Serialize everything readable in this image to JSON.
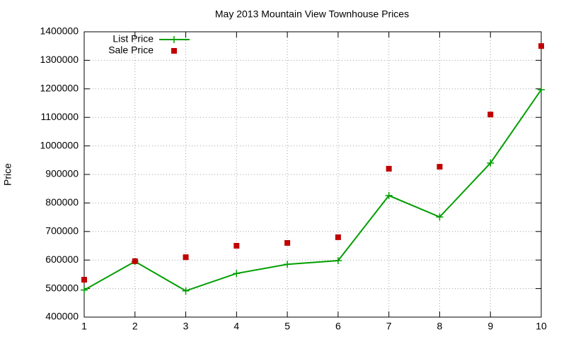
{
  "chart_data": {
    "type": "line",
    "title": "May 2013 Mountain View Townhouse Prices",
    "y_label": "Price",
    "x": [
      1,
      2,
      3,
      4,
      5,
      6,
      7,
      8,
      9,
      10
    ],
    "series": [
      {
        "name": "List Price",
        "color": "#009e00",
        "mode": "linespoints",
        "values": [
          495000,
          595000,
          492000,
          553000,
          585000,
          598000,
          826000,
          751000,
          940000,
          1197000
        ]
      },
      {
        "name": "Sale Price",
        "color": "#c00000",
        "mode": "points",
        "values": [
          531000,
          596000,
          610000,
          650000,
          660000,
          680000,
          920000,
          927000,
          1110000,
          1350000
        ]
      }
    ],
    "xlim": [
      1,
      10
    ],
    "xticks": [
      1,
      2,
      3,
      4,
      5,
      6,
      7,
      8,
      9,
      10
    ],
    "ylim": [
      400000,
      1400000
    ],
    "yticks": [
      400000,
      500000,
      600000,
      700000,
      800000,
      900000,
      1000000,
      1100000,
      1200000,
      1300000,
      1400000
    ],
    "grid": true,
    "legend": "top-left"
  }
}
